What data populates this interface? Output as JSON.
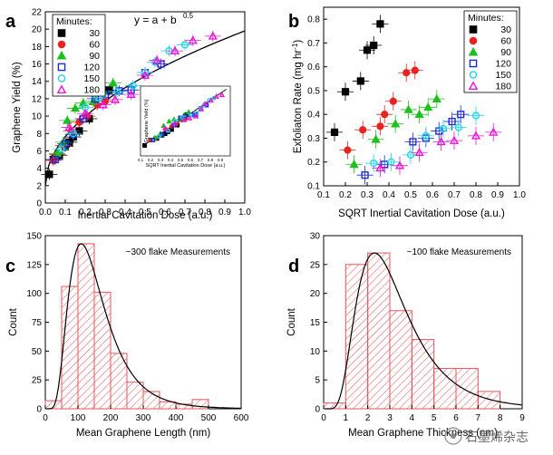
{
  "panels": {
    "a": {
      "letter": "a"
    },
    "b": {
      "letter": "b"
    },
    "c": {
      "letter": "c"
    },
    "d": {
      "letter": "d"
    }
  },
  "chart_data": [
    {
      "id": "a",
      "type": "scatter",
      "xlabel": "Inertial Cavitation Dose (a.u.)",
      "ylabel": "Graphene Yield (%)",
      "xlim": [
        0,
        1.0
      ],
      "ylim": [
        0,
        22
      ],
      "xticks": [
        "0.0",
        "0.1",
        "0.2",
        "0.3",
        "0.4",
        "0.5",
        "0.6",
        "0.7",
        "0.8",
        "0.9",
        "1.0"
      ],
      "yticks": [
        "0",
        "2",
        "4",
        "6",
        "8",
        "10",
        "12",
        "14",
        "16",
        "18",
        "20",
        "22"
      ],
      "annotation": "y = a + b",
      "annotation_sup": "0.5",
      "legend": {
        "title": "Minutes:",
        "entries": [
          "30",
          "60",
          "90",
          "120",
          "150",
          "180"
        ],
        "position": "top-left"
      },
      "fit": {
        "a": 2.0,
        "b": 17.8
      },
      "series": [
        {
          "name": "30",
          "marker": "square",
          "color": "#000000",
          "points": [
            [
              0.02,
              3.3
            ],
            [
              0.04,
              5.0
            ],
            [
              0.07,
              5.5
            ],
            [
              0.1,
              6.5
            ],
            [
              0.12,
              7.0
            ],
            [
              0.14,
              7.6
            ],
            [
              0.17,
              8.3
            ],
            [
              0.22,
              9.7
            ],
            [
              0.32,
              13.0
            ]
          ]
        },
        {
          "name": "60",
          "marker": "circle",
          "color": "#e8231f",
          "points": [
            [
              0.04,
              4.9
            ],
            [
              0.06,
              5.6
            ],
            [
              0.09,
              6.6
            ],
            [
              0.13,
              8.3
            ],
            [
              0.17,
              9.3
            ],
            [
              0.21,
              10.0
            ],
            [
              0.26,
              11.3
            ],
            [
              0.3,
              11.7
            ]
          ]
        },
        {
          "name": "90",
          "marker": "triangle",
          "color": "#1ec01e",
          "points": [
            [
              0.06,
              5.7
            ],
            [
              0.09,
              7.0
            ],
            [
              0.11,
              9.5
            ],
            [
              0.15,
              10.9
            ],
            [
              0.19,
              11.5
            ],
            [
              0.24,
              11.7
            ],
            [
              0.29,
              12.9
            ],
            [
              0.34,
              13.8
            ]
          ]
        },
        {
          "name": "120",
          "marker": "open-square",
          "color": "#1f2ad6",
          "points": [
            [
              0.05,
              5.0
            ],
            [
              0.1,
              6.8
            ],
            [
              0.14,
              7.9
            ],
            [
              0.19,
              9.7
            ],
            [
              0.25,
              12.0
            ],
            [
              0.3,
              12.5
            ],
            [
              0.37,
              12.9
            ],
            [
              0.43,
              13.0
            ],
            [
              0.5,
              15.0
            ],
            [
              0.58,
              16.0
            ]
          ]
        },
        {
          "name": "150",
          "marker": "open-circle",
          "color": "#1fd6e6",
          "points": [
            [
              0.08,
              6.2
            ],
            [
              0.14,
              8.0
            ],
            [
              0.2,
              11.0
            ],
            [
              0.27,
              12.1
            ],
            [
              0.36,
              12.8
            ],
            [
              0.44,
              13.5
            ],
            [
              0.5,
              15.0
            ],
            [
              0.55,
              16.2
            ],
            [
              0.62,
              17.5
            ],
            [
              0.7,
              18.2
            ]
          ]
        },
        {
          "name": "180",
          "marker": "open-triangle",
          "color": "#e617d6",
          "points": [
            [
              0.12,
              8.7
            ],
            [
              0.2,
              10.3
            ],
            [
              0.29,
              11.3
            ],
            [
              0.35,
              11.9
            ],
            [
              0.43,
              12.5
            ],
            [
              0.5,
              14.7
            ],
            [
              0.56,
              16.4
            ],
            [
              0.65,
              17.5
            ],
            [
              0.74,
              18.7
            ],
            [
              0.84,
              19.2
            ]
          ]
        }
      ],
      "inset": {
        "xlabel": "SQRT Inertial Cavitation Dose (a.u.)",
        "ylabel": "Graphene Yield (%)",
        "xticks": [
          "0.1",
          "0.2",
          "0.3",
          "0.4",
          "0.5",
          "0.6",
          "0.7",
          "0.8",
          "0.9"
        ]
      }
    },
    {
      "id": "b",
      "type": "scatter",
      "xlabel": "SQRT Inertial Cavitation Dose (a.u.)",
      "ylabel": "Exfoliaton Rate (mg hr",
      "ylabel_sup": "-1",
      "ylabel_end": ")",
      "xlim": [
        0.1,
        1.0
      ],
      "ylim": [
        0.1,
        0.85
      ],
      "xticks": [
        "0.1",
        "0.2",
        "0.3",
        "0.4",
        "0.5",
        "0.6",
        "0.7",
        "0.8",
        "0.9",
        "1.0"
      ],
      "yticks": [
        "0.1",
        "0.2",
        "0.3",
        "0.4",
        "0.5",
        "0.6",
        "0.7",
        "0.8"
      ],
      "legend": {
        "title": "Minutes:",
        "entries": [
          "30",
          "60",
          "90",
          "120",
          "150",
          "180"
        ],
        "position": "top-right"
      },
      "series": [
        {
          "name": "30",
          "marker": "square",
          "color": "#000000",
          "points": [
            [
              0.15,
              0.325
            ],
            [
              0.2,
              0.495
            ],
            [
              0.27,
              0.54
            ],
            [
              0.3,
              0.67
            ],
            [
              0.33,
              0.69
            ],
            [
              0.36,
              0.78
            ]
          ]
        },
        {
          "name": "60",
          "marker": "circle",
          "color": "#e8231f",
          "points": [
            [
              0.21,
              0.25
            ],
            [
              0.28,
              0.335
            ],
            [
              0.36,
              0.35
            ],
            [
              0.38,
              0.4
            ],
            [
              0.42,
              0.455
            ],
            [
              0.48,
              0.575
            ],
            [
              0.52,
              0.585
            ]
          ]
        },
        {
          "name": "90",
          "marker": "triangle",
          "color": "#1ec01e",
          "points": [
            [
              0.24,
              0.19
            ],
            [
              0.34,
              0.295
            ],
            [
              0.43,
              0.36
            ],
            [
              0.49,
              0.42
            ],
            [
              0.54,
              0.4
            ],
            [
              0.58,
              0.43
            ],
            [
              0.62,
              0.465
            ]
          ]
        },
        {
          "name": "120",
          "marker": "open-square",
          "color": "#1f2ad6",
          "points": [
            [
              0.29,
              0.145
            ],
            [
              0.38,
              0.19
            ],
            [
              0.51,
              0.285
            ],
            [
              0.57,
              0.3
            ],
            [
              0.63,
              0.33
            ],
            [
              0.69,
              0.37
            ],
            [
              0.73,
              0.4
            ]
          ]
        },
        {
          "name": "150",
          "marker": "open-circle",
          "color": "#1fd6e6",
          "points": [
            [
              0.33,
              0.195
            ],
            [
              0.41,
              0.2
            ],
            [
              0.5,
              0.23
            ],
            [
              0.57,
              0.31
            ],
            [
              0.65,
              0.34
            ],
            [
              0.72,
              0.345
            ],
            [
              0.8,
              0.395
            ]
          ]
        },
        {
          "name": "180",
          "marker": "open-triangle",
          "color": "#e617d6",
          "points": [
            [
              0.36,
              0.175
            ],
            [
              0.45,
              0.185
            ],
            [
              0.54,
              0.24
            ],
            [
              0.64,
              0.285
            ],
            [
              0.7,
              0.29
            ],
            [
              0.8,
              0.31
            ],
            [
              0.88,
              0.325
            ]
          ]
        }
      ]
    },
    {
      "id": "c",
      "type": "bar",
      "xlabel": "Mean Graphene Length (nm)",
      "ylabel": "Count",
      "annotation": "~300 flake Measurements",
      "xlim": [
        0,
        600
      ],
      "ylim": [
        0,
        150
      ],
      "xticks": [
        "0",
        "100",
        "200",
        "300",
        "400",
        "500",
        "600"
      ],
      "yticks": [
        "0",
        "25",
        "50",
        "75",
        "100",
        "125",
        "150"
      ],
      "bin_edges": [
        0,
        50,
        100,
        150,
        200,
        250,
        300,
        350,
        400,
        450,
        500
      ],
      "values": [
        7,
        106,
        143,
        101,
        48,
        23,
        15,
        6,
        4,
        8
      ],
      "fit": {
        "mode": 110,
        "peak": 143,
        "sigma": 0.5
      }
    },
    {
      "id": "d",
      "type": "bar",
      "xlabel": "Mean Graphene Thickness (nm)",
      "ylabel": "Count",
      "annotation": "~100 flake Measurements",
      "xlim": [
        0,
        9
      ],
      "ylim": [
        0,
        30
      ],
      "xticks": [
        "0",
        "1",
        "2",
        "3",
        "4",
        "5",
        "6",
        "7",
        "8",
        "9"
      ],
      "yticks": [
        "0",
        "5",
        "10",
        "15",
        "20",
        "25",
        "30"
      ],
      "bin_edges": [
        0,
        1,
        2,
        3,
        4,
        5,
        6,
        7,
        8
      ],
      "values": [
        1,
        25,
        27,
        17,
        12,
        7,
        7,
        3
      ],
      "fit": {
        "mode": 2.3,
        "peak": 27,
        "sigma": 0.5
      }
    }
  ],
  "watermark": "石墨烯杂志"
}
